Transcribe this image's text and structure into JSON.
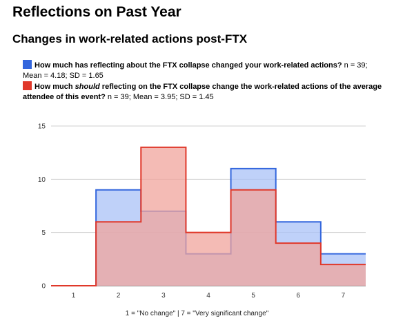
{
  "page": {
    "title": "Reflections on Past Year",
    "section_title": "Changes in work-related actions post-FTX"
  },
  "legend": [
    {
      "color": "#3366dd",
      "question_bold_1": "How much has reflecting about the FTX collapse changed your work-related actions?",
      "question_italic": "",
      "question_bold_2": "",
      "stats": " n = 39; Mean = 4.18; SD = 1.65"
    },
    {
      "color": "#e0382a",
      "question_bold_1": "How much ",
      "question_italic": "should",
      "question_bold_2": " reflecting on the FTX collapse change the work-related actions of the average attendee of this event?",
      "stats": " n = 39; Mean = 3.95; SD = 1.45"
    }
  ],
  "chart_data": {
    "type": "area",
    "categories": [
      "1",
      "2",
      "3",
      "4",
      "5",
      "6",
      "7"
    ],
    "series": [
      {
        "name": "How much has reflecting about the FTX collapse changed your work-related actions?",
        "values": [
          0,
          9,
          7,
          3,
          11,
          6,
          3
        ],
        "stroke": "#3366dd",
        "fill": "#a9c1f7"
      },
      {
        "name": "How much should reflecting on the FTX collapse change the work-related actions of the average attendee of this event?",
        "values": [
          0,
          6,
          13,
          5,
          9,
          4,
          2
        ],
        "stroke": "#e0382a",
        "fill": "#f0a49c"
      }
    ],
    "ylim": [
      0,
      15
    ],
    "yticks": [
      "0",
      "5",
      "10",
      "15"
    ],
    "grid": true,
    "xlabel": "1 = \"No change\"   |   7 = \"Very significant change\"",
    "ylabel": "",
    "title": ""
  }
}
